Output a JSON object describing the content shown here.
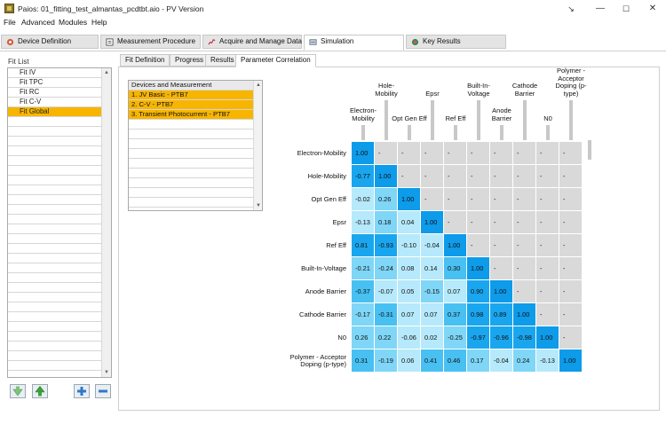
{
  "window": {
    "title": "Paios: 01_fitting_test_almantas_pcdtbt.aio  -  PV Version",
    "minimize": "—",
    "maximize": "☐",
    "close": "✕",
    "extra": "↘"
  },
  "menu": [
    "File",
    "Advanced",
    "Modules",
    "Help"
  ],
  "main_tabs": [
    {
      "label": "Device Definition",
      "icon": "device-icon"
    },
    {
      "label": "Measurement Procedure",
      "icon": "procedure-icon"
    },
    {
      "label": "Acquire and Manage Data",
      "icon": "chart-line-icon"
    },
    {
      "label": "Simulation",
      "icon": "simulation-icon",
      "active": true
    },
    {
      "label": "Key Results",
      "icon": "key-results-icon"
    }
  ],
  "fit_list": {
    "title": "Fit List",
    "items": [
      "Fit IV",
      "Fit TPC",
      "Fit RC",
      "Fit C-V",
      "Fit Global"
    ],
    "selected": "Fit Global"
  },
  "sub_tabs": [
    "Fit Definition",
    "Progress",
    "Results",
    "Parameter Correlation"
  ],
  "active_sub_tab": "Parameter Correlation",
  "devices_table": {
    "header": "Devices and Measurement",
    "rows": [
      "1. JV Basic - PTB7",
      "2. C-V - PTB7",
      "3. Transient Photocurrent - PTB7"
    ]
  },
  "correlation": {
    "parameters": [
      "Electron-Mobility",
      "Hole-Mobility",
      "Opt Gen Eff",
      "Epsr",
      "Ref Eff",
      "Built-In-Voltage",
      "Anode Barrier",
      "Cathode Barrier",
      "N0",
      "Polymer - Acceptor Doping (p-type)"
    ],
    "column_labels_top": [
      "Hole-\nMobility",
      "Epsr",
      "Built-In-\nVoltage",
      "Cathode\nBarrier",
      "Polymer -\nAcceptor\nDoping (p-\ntype)"
    ],
    "column_labels_bottom": [
      "Electron-\nMobility",
      "Opt Gen Eff",
      "Ref Eff",
      "Anode\nBarrier",
      "N0"
    ],
    "row_labels": [
      "Electron-Mobility",
      "Hole-Mobility",
      "Opt Gen Eff",
      "Epsr",
      "Ref Eff",
      "Built-In-Voltage",
      "Anode Barrier",
      "Cathode Barrier",
      "N0",
      "Polymer - Acceptor\nDoping (p-type)"
    ],
    "empty_mark": "-",
    "matrix": [
      [
        "1.00"
      ],
      [
        "-0.77",
        "1.00"
      ],
      [
        "-0.02",
        "0.26",
        "1.00"
      ],
      [
        "-0.13",
        "0.18",
        "0.04",
        "1.00"
      ],
      [
        "0.81",
        "-0.93",
        "-0.10",
        "-0.04",
        "1.00"
      ],
      [
        "-0.21",
        "-0.24",
        "0.08",
        "0.14",
        "0.30",
        "1.00"
      ],
      [
        "-0.37",
        "-0.07",
        "0.05",
        "-0.15",
        "0.07",
        "0.90",
        "1.00"
      ],
      [
        "-0.17",
        "-0.31",
        "0.07",
        "0.07",
        "0.37",
        "0.98",
        "0.89",
        "1.00"
      ],
      [
        "0.26",
        "0.22",
        "-0.06",
        "0.02",
        "-0.25",
        "-0.97",
        "-0.96",
        "-0.98",
        "1.00"
      ],
      [
        "0.31",
        "-0.19",
        "0.06",
        "0.41",
        "0.46",
        "0.17",
        "-0.04",
        "0.24",
        "-0.13",
        "1.00"
      ]
    ],
    "colors": {
      "diagonal": "#0d9bea",
      "strong": "#1aa6ee",
      "medium": "#48c0f2",
      "weak": "#7fd6f7",
      "faint": "#b6e9fb",
      "empty": "#d9d9d9"
    }
  },
  "colors": {
    "selection": "#f7b500",
    "button_green": "#3aa33a",
    "button_blue": "#2f78c9"
  }
}
